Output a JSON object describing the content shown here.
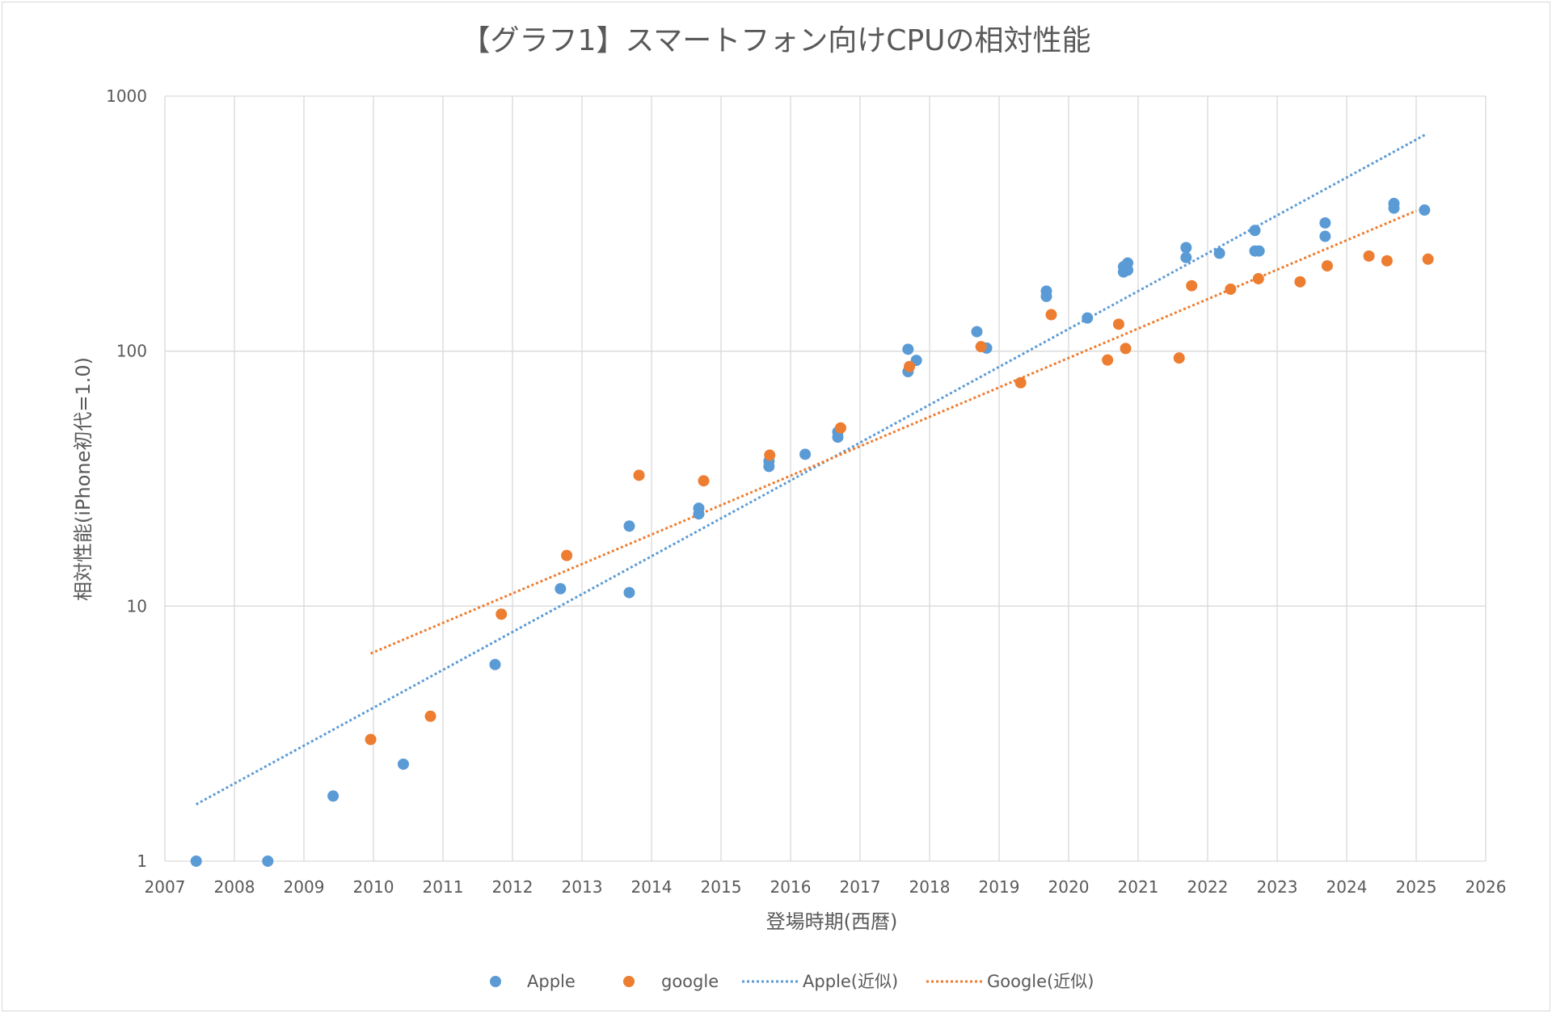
{
  "chart_data": {
    "type": "scatter",
    "title": "【グラフ1】スマートフォン向けCPUの相対性能",
    "xlabel": "登場時期(西暦)",
    "ylabel": "相対性能(iPhone初代=1.0)",
    "xlim": [
      2007,
      2026
    ],
    "ylim": [
      1,
      1000
    ],
    "y_scale": "log",
    "x_ticks": [
      "2007",
      "2008",
      "2009",
      "2010",
      "2011",
      "2012",
      "2013",
      "2014",
      "2015",
      "2016",
      "2017",
      "2018",
      "2019",
      "2020",
      "2021",
      "2022",
      "2023",
      "2024",
      "2025",
      "2026"
    ],
    "y_ticks": [
      "1",
      "10",
      "100",
      "1000"
    ],
    "grid": true,
    "legend_position": "bottom",
    "series": [
      {
        "name": "Apple",
        "color": "#5b9bd5",
        "points": [
          [
            2007.45,
            1.0
          ],
          [
            2008.48,
            1.0
          ],
          [
            2009.42,
            1.8
          ],
          [
            2010.43,
            2.4
          ],
          [
            2011.75,
            5.9
          ],
          [
            2012.69,
            11.7
          ],
          [
            2013.68,
            11.3
          ],
          [
            2013.68,
            20.6
          ],
          [
            2014.68,
            23.0
          ],
          [
            2014.68,
            24.2
          ],
          [
            2015.69,
            35.3
          ],
          [
            2015.69,
            37.0
          ],
          [
            2016.21,
            39.4
          ],
          [
            2016.68,
            46.0
          ],
          [
            2016.68,
            48.2
          ],
          [
            2017.69,
            83.1
          ],
          [
            2017.69,
            101.7
          ],
          [
            2017.81,
            92.0
          ],
          [
            2018.68,
            119.2
          ],
          [
            2018.82,
            102.8
          ],
          [
            2019.68,
            163.9
          ],
          [
            2019.68,
            172.0
          ],
          [
            2020.27,
            134.9
          ],
          [
            2020.79,
            204.3
          ],
          [
            2020.79,
            214.3
          ],
          [
            2020.85,
            207.8
          ],
          [
            2020.85,
            221.6
          ],
          [
            2021.69,
            232.9
          ],
          [
            2021.69,
            254.7
          ],
          [
            2022.17,
            242.0
          ],
          [
            2022.68,
            297.4
          ],
          [
            2022.68,
            247.0
          ],
          [
            2022.74,
            247.0
          ],
          [
            2023.69,
            318.3
          ],
          [
            2023.69,
            282.0
          ],
          [
            2024.68,
            363.8
          ],
          [
            2024.68,
            379.2
          ],
          [
            2025.12,
            357.5
          ]
        ]
      },
      {
        "name": "google",
        "color": "#ed7d31",
        "points": [
          [
            2009.96,
            3.0
          ],
          [
            2010.82,
            3.7
          ],
          [
            2011.84,
            9.3
          ],
          [
            2012.78,
            15.8
          ],
          [
            2013.82,
            32.6
          ],
          [
            2014.75,
            31.0
          ],
          [
            2015.7,
            39.1
          ],
          [
            2016.72,
            50.0
          ],
          [
            2017.71,
            87.0
          ],
          [
            2018.74,
            104.1
          ],
          [
            2019.31,
            75.2
          ],
          [
            2019.75,
            139.0
          ],
          [
            2020.56,
            92.3
          ],
          [
            2020.72,
            127.5
          ],
          [
            2020.82,
            102.4
          ],
          [
            2021.59,
            94.0
          ],
          [
            2021.77,
            180.5
          ],
          [
            2022.33,
            175.0
          ],
          [
            2022.73,
            192.3
          ],
          [
            2023.33,
            187.0
          ],
          [
            2023.72,
            216.0
          ],
          [
            2024.32,
            236.0
          ],
          [
            2024.58,
            226.0
          ],
          [
            2025.17,
            229.5
          ]
        ]
      }
    ],
    "trendlines": [
      {
        "name": "Apple(近似)",
        "color": "#5b9bd5",
        "from": [
          2007.45,
          1.67
        ],
        "to": [
          2025.13,
          706.0
        ]
      },
      {
        "name": "Google(近似)",
        "color": "#ed7d31",
        "from": [
          2009.96,
          6.52
        ],
        "to": [
          2025.0,
          355.0
        ]
      }
    ]
  }
}
